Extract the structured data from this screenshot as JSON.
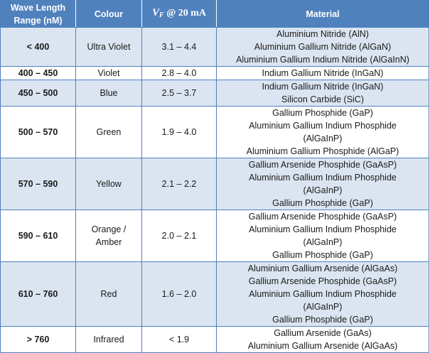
{
  "table": {
    "headers": {
      "range": "Wave Length Range (nM)",
      "colour": "Colour",
      "vf_symbol": "V",
      "vf_subscript": "F",
      "vf_rest": " @ 20 mA",
      "material": "Material"
    },
    "rows": [
      {
        "range": "< 400",
        "colour": "Ultra Violet",
        "vf": "3.1 – 4.4",
        "materials": [
          "Aluminium Nitride (AlN)",
          "Aluminium Gallium Nitride (AlGaN)",
          "Aluminium Gallium Indium Nitride (AlGaInN)"
        ]
      },
      {
        "range": "400 – 450",
        "colour": "Violet",
        "vf": "2.8 – 4.0",
        "materials": [
          "Indium Gallium Nitride (InGaN)"
        ]
      },
      {
        "range": "450 – 500",
        "colour": "Blue",
        "vf": "2.5 – 3.7",
        "materials": [
          "Indium Gallium Nitride (InGaN)",
          "Silicon Carbide (SiC)"
        ]
      },
      {
        "range": "500 – 570",
        "colour": "Green",
        "vf": "1.9 – 4.0",
        "materials": [
          "Gallium Phosphide (GaP)",
          "Aluminium Gallium Indium Phosphide",
          "(AlGaInP)",
          "Aluminium Gallium Phosphide (AlGaP)"
        ]
      },
      {
        "range": "570 – 590",
        "colour": "Yellow",
        "vf": "2.1 – 2.2",
        "materials": [
          "Gallium Arsenide Phosphide (GaAsP)",
          "Aluminium Gallium Indium Phosphide",
          "(AlGaInP)",
          "Gallium Phosphide (GaP)"
        ]
      },
      {
        "range": "590 – 610",
        "colour": "Orange / Amber",
        "vf": "2.0 – 2.1",
        "materials": [
          "Gallium Arsenide Phosphide (GaAsP)",
          "Aluminium Gallium Indium Phosphide",
          "(AlGaInP)",
          "Gallium Phosphide (GaP)"
        ]
      },
      {
        "range": "610 – 760",
        "colour": "Red",
        "vf": "1.6 – 2.0",
        "materials": [
          "Aluminium Gallium Arsenide (AlGaAs)",
          "Gallium Arsenide Phosphide (GaAsP)",
          "Aluminium Gallium Indium Phosphide",
          "(AlGaInP)",
          "Gallium Phosphide (GaP)"
        ]
      },
      {
        "range": "> 760",
        "colour": "Infrared",
        "vf": "< 1.9",
        "materials": [
          "Gallium Arsenide (GaAs)",
          "Aluminium Gallium Arsenide (AlGaAs)"
        ]
      }
    ]
  },
  "colors": {
    "header_bg": "#4f81bd",
    "shaded_row_bg": "#dbe5f1",
    "border": "#4f81bd"
  }
}
